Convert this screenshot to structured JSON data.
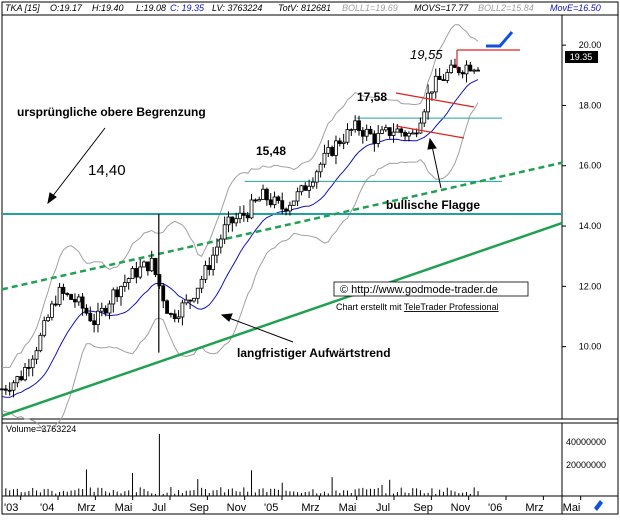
{
  "header": {
    "symbol": "TKA [15]",
    "open": "O:19.17",
    "high": "H:19.40",
    "low": "L:19.08",
    "close": "C: 19.35",
    "last_volume": "LV: 3763224",
    "total_volume": "TotV: 812681",
    "boll1": "BOLL1=19.69",
    "movs": "MOVS=17.77",
    "boll2": "BOLL2=15.84",
    "move": "MovE=16.50"
  },
  "annotations": {
    "upper_boundary": "ursprüngliche obere Begrenzung",
    "level_1440": "14,40",
    "level_1548": "15,48",
    "level_1758": "17,58",
    "level_1955": "19,55",
    "bull_flag": "bullische Flagge",
    "long_trend": "langfristiger Aufwärtstrend",
    "copyright": "© http://www.godmode-trader.de",
    "credit_prefix": "Chart erstellt mit ",
    "credit_link": "TeleTrader Professional",
    "last_price": "19.35"
  },
  "volume_panel": {
    "label": "Volume=3763224",
    "ticks": [
      "40000000",
      "20000000"
    ]
  },
  "colors": {
    "candle": "#000000",
    "bollinger": "#a0a0a0",
    "moving_average": "#1010c0",
    "trendline": "#20a050",
    "horizontal_lines": "#20a0a0",
    "flag_lines": "#e02020",
    "marker": "#1050e0"
  },
  "chart_data": {
    "type": "candlestick",
    "x_axis_ticks": [
      "'03",
      "'04",
      "Mrz",
      "Mai",
      "Jul",
      "Sep",
      "Nov",
      "'05",
      "Mrz",
      "Mai",
      "Jul",
      "Sep",
      "Nov",
      "'06",
      "Mrz",
      "Mai"
    ],
    "y_axis_ticks": [
      20.0,
      18.0,
      16.0,
      14.0,
      12.0,
      10.0
    ],
    "ylim": [
      7.6,
      21.0
    ],
    "x_range": [
      "2003-12",
      "2006-06"
    ],
    "price_path": [
      [
        "2003-12",
        8.6
      ],
      [
        "2004-01",
        9.0
      ],
      [
        "2004-02",
        10.2
      ],
      [
        "2004-03",
        11.8
      ],
      [
        "2004-04",
        11.5
      ],
      [
        "2004-05",
        10.8
      ],
      [
        "2004-06",
        11.8
      ],
      [
        "2004-07",
        12.4
      ],
      [
        "2004-08",
        12.8
      ],
      [
        "2004-09",
        11.0
      ],
      [
        "2004-10",
        11.5
      ],
      [
        "2004-11",
        12.6
      ],
      [
        "2004-12",
        14.0
      ],
      [
        "2005-01",
        14.4
      ],
      [
        "2005-02",
        15.0
      ],
      [
        "2005-03",
        14.6
      ],
      [
        "2005-04",
        15.1
      ],
      [
        "2005-05",
        16.0
      ],
      [
        "2005-06",
        16.8
      ],
      [
        "2005-07",
        17.3
      ],
      [
        "2005-08",
        16.9
      ],
      [
        "2005-09",
        17.2
      ],
      [
        "2005-10",
        17.0
      ],
      [
        "2005-11",
        18.6
      ],
      [
        "2005-12",
        19.1
      ],
      [
        "2006-01",
        19.35
      ]
    ],
    "horizontal_levels": [
      14.4,
      15.48,
      17.58,
      19.55
    ],
    "trendlines": [
      {
        "name": "langfristiger Aufwärtstrend",
        "from": [
          "2003-12",
          7.7
        ],
        "to": [
          "2006-06",
          14.1
        ]
      },
      {
        "name": "ursprüngliche obere Begrenzung",
        "from": [
          "2003-12",
          11.9
        ],
        "to": [
          "2006-06",
          16.1
        ]
      }
    ],
    "volume": {
      "ylim": [
        0,
        50000000
      ],
      "peak": 45000000
    }
  }
}
